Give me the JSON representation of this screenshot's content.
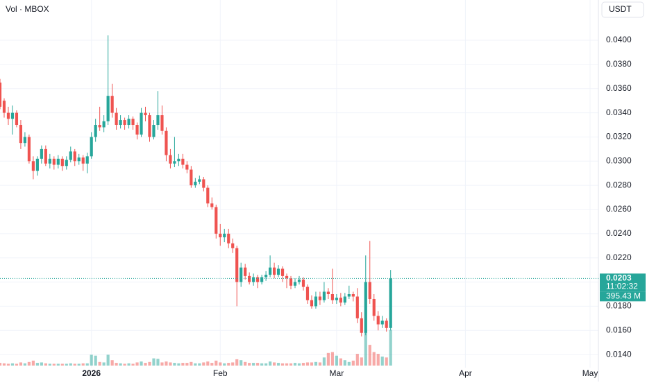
{
  "chart_data": {
    "type": "candlestick",
    "title": "Vol · MBOX",
    "currency": "USDT",
    "x": [
      0,
      1,
      2,
      3,
      4,
      5,
      6,
      7,
      8,
      9,
      10,
      11,
      12,
      13,
      14,
      15,
      16,
      17,
      18,
      19,
      20,
      21,
      22,
      23,
      24,
      25,
      26,
      27,
      28,
      29,
      30,
      31,
      32,
      33,
      34,
      35,
      36,
      37,
      38,
      39,
      40,
      41,
      42,
      43,
      44,
      45,
      46,
      47,
      48,
      49,
      50,
      51,
      52,
      53,
      54,
      55,
      56,
      57,
      58,
      59,
      60,
      61,
      62,
      63,
      64,
      65,
      66,
      67,
      68,
      69,
      70,
      71,
      72,
      73,
      74,
      75,
      76,
      77,
      78,
      79,
      80,
      81,
      82,
      83,
      84,
      85,
      86,
      87,
      88,
      89,
      90,
      91,
      92,
      93,
      94
    ],
    "open": [
      0.0365,
      0.035,
      0.034,
      0.0335,
      0.034,
      0.033,
      0.0315,
      0.032,
      0.03,
      0.0292,
      0.0302,
      0.031,
      0.0298,
      0.0302,
      0.0297,
      0.0302,
      0.0296,
      0.0301,
      0.0308,
      0.03,
      0.0303,
      0.0298,
      0.0304,
      0.032,
      0.033,
      0.0328,
      0.0333,
      0.0354,
      0.034,
      0.033,
      0.0334,
      0.033,
      0.0335,
      0.033,
      0.0322,
      0.034,
      0.0338,
      0.032,
      0.033,
      0.0338,
      0.0325,
      0.0305,
      0.0298,
      0.03,
      0.0302,
      0.0297,
      0.0293,
      0.028,
      0.0283,
      0.0285,
      0.0278,
      0.0265,
      0.0262,
      0.024,
      0.0237,
      0.024,
      0.0232,
      0.0228,
      0.02,
      0.0212,
      0.0205,
      0.02,
      0.0204,
      0.02,
      0.0204,
      0.0206,
      0.0212,
      0.0206,
      0.0211,
      0.0205,
      0.0203,
      0.0197,
      0.02,
      0.0202,
      0.0196,
      0.0185,
      0.018,
      0.0188,
      0.0185,
      0.0192,
      0.019,
      0.0185,
      0.0187,
      0.0183,
      0.0188,
      0.019,
      0.0188,
      0.017,
      0.0158,
      0.02,
      0.0186,
      0.0172,
      0.0165,
      0.0168,
      0.0162
    ],
    "high": [
      0.0368,
      0.0352,
      0.0345,
      0.0346,
      0.0342,
      0.0334,
      0.0324,
      0.0322,
      0.0304,
      0.0304,
      0.0313,
      0.0313,
      0.0306,
      0.0304,
      0.0305,
      0.0304,
      0.0304,
      0.0312,
      0.031,
      0.0306,
      0.0305,
      0.0307,
      0.0324,
      0.0335,
      0.0345,
      0.0338,
      0.0404,
      0.0364,
      0.0344,
      0.0338,
      0.0336,
      0.0338,
      0.0337,
      0.0332,
      0.0344,
      0.0345,
      0.034,
      0.0334,
      0.0358,
      0.0346,
      0.0328,
      0.031,
      0.032,
      0.0306,
      0.0306,
      0.03,
      0.0296,
      0.0286,
      0.0288,
      0.0287,
      0.028,
      0.027,
      0.0264,
      0.0248,
      0.0244,
      0.0244,
      0.0236,
      0.023,
      0.0216,
      0.0215,
      0.0208,
      0.0207,
      0.0206,
      0.0206,
      0.0209,
      0.0222,
      0.0216,
      0.0214,
      0.0213,
      0.0207,
      0.0205,
      0.0203,
      0.0205,
      0.0204,
      0.0198,
      0.0189,
      0.0192,
      0.0192,
      0.02,
      0.0195,
      0.0211,
      0.019,
      0.0191,
      0.0191,
      0.0197,
      0.0192,
      0.0195,
      0.0175,
      0.0222,
      0.0234,
      0.019,
      0.0176,
      0.0172,
      0.017,
      0.021
    ],
    "low": [
      0.0343,
      0.0336,
      0.033,
      0.0322,
      0.0328,
      0.031,
      0.0312,
      0.0298,
      0.0285,
      0.0288,
      0.0298,
      0.0296,
      0.0294,
      0.0293,
      0.0294,
      0.0292,
      0.0293,
      0.0299,
      0.0296,
      0.0297,
      0.0292,
      0.029,
      0.0302,
      0.0316,
      0.0325,
      0.0324,
      0.033,
      0.0336,
      0.0326,
      0.0327,
      0.0326,
      0.0327,
      0.0326,
      0.0318,
      0.032,
      0.0333,
      0.0316,
      0.0318,
      0.0326,
      0.0322,
      0.03,
      0.0294,
      0.0295,
      0.0296,
      0.0294,
      0.029,
      0.0278,
      0.0278,
      0.0281,
      0.0275,
      0.0262,
      0.026,
      0.0236,
      0.023,
      0.0233,
      0.0228,
      0.0224,
      0.018,
      0.0196,
      0.0202,
      0.0198,
      0.0197,
      0.0195,
      0.0198,
      0.0201,
      0.0204,
      0.0203,
      0.0204,
      0.02,
      0.0195,
      0.0194,
      0.0195,
      0.0198,
      0.0193,
      0.0182,
      0.0178,
      0.0178,
      0.0181,
      0.0183,
      0.0186,
      0.0182,
      0.0182,
      0.018,
      0.0181,
      0.0186,
      0.0184,
      0.0166,
      0.0155,
      0.0156,
      0.0182,
      0.0168,
      0.016,
      0.0162,
      0.0159,
      0.016
    ],
    "close": [
      0.0345,
      0.034,
      0.0335,
      0.034,
      0.033,
      0.0315,
      0.032,
      0.03,
      0.0292,
      0.0302,
      0.031,
      0.0298,
      0.0302,
      0.0297,
      0.0302,
      0.0296,
      0.0301,
      0.0308,
      0.03,
      0.0303,
      0.0298,
      0.0304,
      0.032,
      0.033,
      0.0328,
      0.0333,
      0.0354,
      0.034,
      0.033,
      0.0334,
      0.033,
      0.0335,
      0.033,
      0.0322,
      0.034,
      0.0338,
      0.032,
      0.033,
      0.0338,
      0.0325,
      0.0305,
      0.0298,
      0.03,
      0.0302,
      0.0297,
      0.0293,
      0.028,
      0.0283,
      0.0285,
      0.0278,
      0.0265,
      0.0262,
      0.024,
      0.0237,
      0.024,
      0.0232,
      0.0228,
      0.02,
      0.0212,
      0.0205,
      0.02,
      0.0204,
      0.02,
      0.0204,
      0.0206,
      0.0212,
      0.0206,
      0.0211,
      0.0205,
      0.0203,
      0.0197,
      0.02,
      0.0202,
      0.0196,
      0.0185,
      0.018,
      0.0188,
      0.0185,
      0.0192,
      0.019,
      0.0185,
      0.0187,
      0.0183,
      0.0188,
      0.019,
      0.0188,
      0.017,
      0.0158,
      0.02,
      0.0186,
      0.0172,
      0.0165,
      0.0168,
      0.0162,
      0.0203
    ],
    "volume": [
      30,
      25,
      20,
      25,
      20,
      35,
      25,
      40,
      55,
      30,
      35,
      25,
      20,
      20,
      20,
      20,
      20,
      25,
      20,
      20,
      25,
      25,
      120,
      110,
      40,
      35,
      120,
      60,
      30,
      25,
      20,
      25,
      20,
      35,
      45,
      30,
      40,
      80,
      75,
      35,
      45,
      35,
      30,
      25,
      30,
      30,
      40,
      25,
      25,
      35,
      45,
      30,
      55,
      35,
      25,
      30,
      35,
      70,
      60,
      40,
      30,
      30,
      30,
      25,
      25,
      45,
      35,
      30,
      25,
      25,
      25,
      30,
      25,
      30,
      35,
      35,
      40,
      35,
      90,
      140,
      150,
      110,
      80,
      60,
      40,
      55,
      130,
      90,
      380,
      230,
      150,
      130,
      100,
      90,
      395.43
    ],
    "up_color": "#26a69a",
    "down_color": "#ef5350",
    "xlim": [
      0,
      144
    ],
    "xticks": [
      {
        "value": 22,
        "label": "2026"
      },
      {
        "value": 53,
        "label": "Feb"
      },
      {
        "value": 81,
        "label": "Mar"
      },
      {
        "value": 112,
        "label": "Apr"
      },
      {
        "value": 142,
        "label": "May"
      }
    ],
    "ylim": [
      0.01309,
      0.04333
    ],
    "yticks": [
      {
        "value": 0.014,
        "label": "0.0140"
      },
      {
        "value": 0.016,
        "label": "0.0160"
      },
      {
        "value": 0.018,
        "label": "0.0180"
      },
      {
        "value": 0.02,
        "label": "0.0200"
      },
      {
        "value": 0.022,
        "label": "0.0220"
      },
      {
        "value": 0.024,
        "label": "0.0240"
      },
      {
        "value": 0.026,
        "label": "0.0260"
      },
      {
        "value": 0.028,
        "label": "0.0280"
      },
      {
        "value": 0.03,
        "label": "0.0300"
      },
      {
        "value": 0.032,
        "label": "0.0320"
      },
      {
        "value": 0.034,
        "label": "0.0340"
      },
      {
        "value": 0.036,
        "label": "0.0360"
      },
      {
        "value": 0.038,
        "label": "0.0380"
      },
      {
        "value": 0.04,
        "label": "0.0400"
      }
    ],
    "volume_lim": [
      0,
      1000
    ],
    "last_price_label": "0.0203",
    "countdown": "11:02:32",
    "last_volume_label": "395.43 M",
    "grid": true
  }
}
